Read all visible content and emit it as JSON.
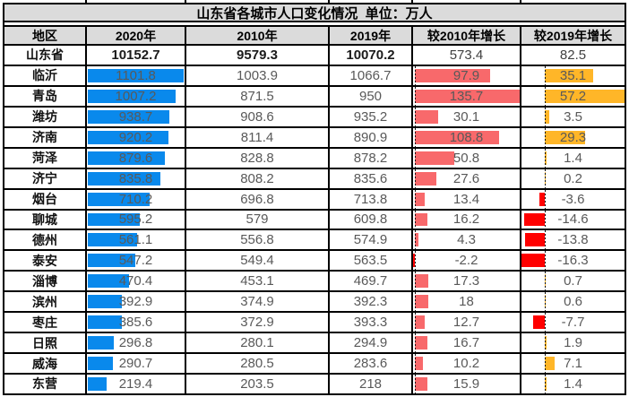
{
  "chart_data": {
    "type": "table",
    "title": "山东省各城市人口变化情况  单位：万人",
    "columns": [
      "地区",
      "2020年",
      "2010年",
      "2019年",
      "较2010年增长",
      "较2019年增长"
    ],
    "summary": {
      "region": "山东省",
      "y2020": "10152.7",
      "y2010": "9579.3",
      "y2019": "10070.2",
      "vs2010": "573.4",
      "vs2019": "82.5"
    },
    "rows": [
      {
        "region": "临沂",
        "y2020": "1101.8",
        "y2010": "1003.9",
        "y2019": "1066.7",
        "vs2010": "97.9",
        "vs2019": "35.1"
      },
      {
        "region": "青岛",
        "y2020": "1007.2",
        "y2010": "871.5",
        "y2019": "950",
        "vs2010": "135.7",
        "vs2019": "57.2"
      },
      {
        "region": "潍坊",
        "y2020": "938.7",
        "y2010": "908.6",
        "y2019": "935.2",
        "vs2010": "30.1",
        "vs2019": "3.5"
      },
      {
        "region": "济南",
        "y2020": "920.2",
        "y2010": "811.4",
        "y2019": "890.9",
        "vs2010": "108.8",
        "vs2019": "29.3"
      },
      {
        "region": "菏泽",
        "y2020": "879.6",
        "y2010": "828.8",
        "y2019": "878.2",
        "vs2010": "50.8",
        "vs2019": "1.4"
      },
      {
        "region": "济宁",
        "y2020": "835.8",
        "y2010": "808.2",
        "y2019": "835.6",
        "vs2010": "27.6",
        "vs2019": "0.2"
      },
      {
        "region": "烟台",
        "y2020": "710.2",
        "y2010": "696.8",
        "y2019": "713.8",
        "vs2010": "13.4",
        "vs2019": "-3.6"
      },
      {
        "region": "聊城",
        "y2020": "595.2",
        "y2010": "579",
        "y2019": "609.8",
        "vs2010": "16.2",
        "vs2019": "-14.6"
      },
      {
        "region": "德州",
        "y2020": "561.1",
        "y2010": "556.8",
        "y2019": "574.9",
        "vs2010": "4.3",
        "vs2019": "-13.8"
      },
      {
        "region": "泰安",
        "y2020": "547.2",
        "y2010": "549.4",
        "y2019": "563.5",
        "vs2010": "-2.2",
        "vs2019": "-16.3"
      },
      {
        "region": "淄博",
        "y2020": "470.4",
        "y2010": "453.1",
        "y2019": "469.7",
        "vs2010": "17.3",
        "vs2019": "0.7"
      },
      {
        "region": "滨州",
        "y2020": "392.9",
        "y2010": "374.9",
        "y2019": "392.3",
        "vs2010": "18",
        "vs2019": "0.6"
      },
      {
        "region": "枣庄",
        "y2020": "385.6",
        "y2010": "372.9",
        "y2019": "393.3",
        "vs2010": "12.7",
        "vs2019": "-7.7"
      },
      {
        "region": "日照",
        "y2020": "296.8",
        "y2010": "280.1",
        "y2019": "294.9",
        "vs2010": "16.7",
        "vs2019": "1.9"
      },
      {
        "region": "威海",
        "y2020": "290.7",
        "y2010": "280.5",
        "y2019": "283.6",
        "vs2010": "10.2",
        "vs2019": "7.1"
      },
      {
        "region": "东营",
        "y2020": "219.4",
        "y2010": "203.5",
        "y2019": "218",
        "vs2010": "15.9",
        "vs2019": "1.4"
      }
    ],
    "colors": {
      "bar_2020": "#0989EC",
      "bar_growth_2010_positive": "#F8696B",
      "bar_growth_2019_positive": "#FFB628",
      "bar_negative": "#FF0000",
      "header_bg": "#DBDBDB",
      "border": "#000000",
      "number_text": "#595959"
    },
    "layout_hints": {
      "databar_axis": "dashed vertical zero-axis line in both growth columns",
      "bar_scaling": "bars scaled linearly from zero to column max / min"
    }
  }
}
